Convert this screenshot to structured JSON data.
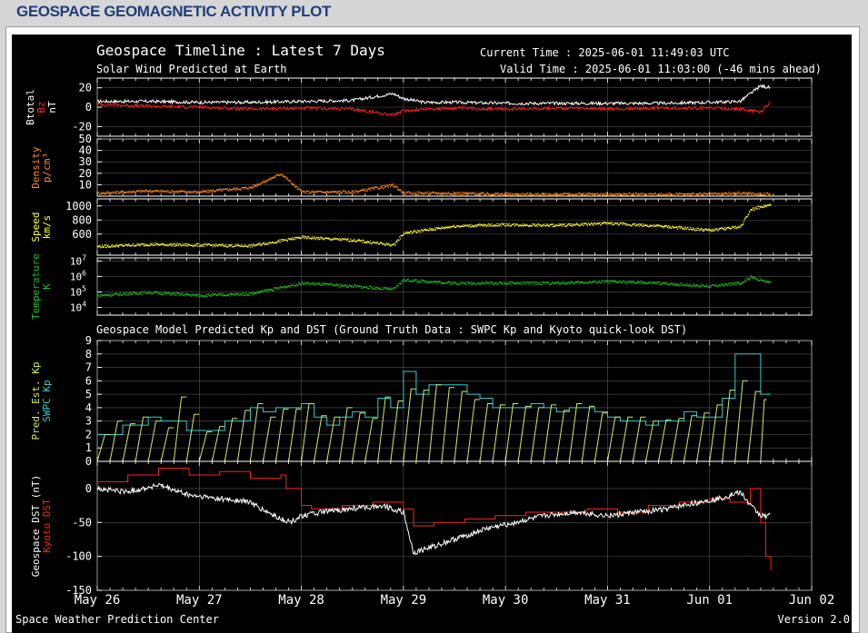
{
  "page": {
    "title": "GEOSPACE GEOMAGNETIC ACTIVITY PLOT"
  },
  "header": {
    "title": "Geospace Timeline : Latest 7 Days",
    "subtitle": "Solar Wind Predicted at Earth",
    "current_time": "Current Time : 2025-06-01 11:49:03 UTC",
    "valid_time": "Valid Time : 2025-06-01 11:03:00 (-46 mins ahead)",
    "model_title": "Geospace Model Predicted Kp and DST (Ground Truth Data : SWPC Kp and Kyoto quick-look DST)"
  },
  "footer": {
    "left": "Space Weather Prediction Center",
    "right": "Version 2.0"
  },
  "colors": {
    "white": "#ffffff",
    "red": "#ff2020",
    "orange": "#ff8c1a",
    "yellow": "#ffff33",
    "green": "#22bb22",
    "lightgreen": "#ccee66",
    "cyan": "#33cccc",
    "grid": "#555555",
    "axis": "#ffffff"
  },
  "chart_data": [
    {
      "type": "line",
      "title": "Geospace Timeline : Latest 7 Days",
      "ylabels": [
        "Btotal",
        "Bz",
        "nT"
      ],
      "yticks": [
        20,
        0,
        -20
      ],
      "ylim": [
        -30,
        30
      ],
      "series": [
        {
          "name": "Btotal",
          "color": "#ffffff",
          "x": [
            0,
            0.5,
            1,
            1.5,
            2,
            2.5,
            2.9,
            3,
            3.2,
            3.5,
            4,
            4.5,
            5,
            5.5,
            6,
            6.3,
            6.5,
            6.6
          ],
          "y": [
            6,
            6,
            5,
            5,
            6,
            7,
            14,
            9,
            5,
            5,
            4,
            4,
            4,
            4,
            5,
            6,
            22,
            20
          ]
        },
        {
          "name": "Bz",
          "color": "#ff2020",
          "x": [
            0,
            0.5,
            1,
            1.5,
            2,
            2.5,
            2.9,
            3,
            3.2,
            3.5,
            4,
            4.5,
            5,
            5.5,
            6,
            6.3,
            6.5,
            6.6
          ],
          "y": [
            3,
            1,
            0,
            -2,
            -1,
            -2,
            -8,
            -4,
            -2,
            -1,
            -2,
            -1,
            -2,
            -1,
            -1,
            -2,
            -5,
            5
          ]
        }
      ]
    },
    {
      "type": "scatter",
      "ylabels": [
        "Density",
        "p/cm³"
      ],
      "yticks": [
        50,
        40,
        30,
        20,
        10
      ],
      "ylim": [
        0,
        50
      ],
      "series": [
        {
          "name": "Density",
          "color": "#ff8c1a",
          "x": [
            0,
            0.5,
            1,
            1.5,
            1.8,
            2,
            2.5,
            2.9,
            3,
            3.5,
            4,
            4.5,
            5,
            5.5,
            6,
            6.3,
            6.6
          ],
          "y": [
            3,
            5,
            4,
            8,
            20,
            4,
            4,
            10,
            3,
            3,
            2,
            2,
            2,
            2,
            2,
            3,
            2
          ]
        }
      ]
    },
    {
      "type": "scatter",
      "ylabels": [
        "Speed",
        "km/s"
      ],
      "yticks": [
        1000,
        800,
        600
      ],
      "ylim": [
        300,
        1100
      ],
      "series": [
        {
          "name": "Speed",
          "color": "#ffff33",
          "x": [
            0,
            0.5,
            1,
            1.5,
            2,
            2.5,
            2.9,
            3,
            3.5,
            4,
            4.5,
            5,
            5.5,
            6,
            6.3,
            6.4,
            6.6
          ],
          "y": [
            430,
            460,
            450,
            440,
            560,
            520,
            450,
            620,
            720,
            740,
            730,
            760,
            720,
            660,
            710,
            960,
            1020
          ]
        }
      ]
    },
    {
      "type": "scatter",
      "ylabels": [
        "Temperature",
        "K"
      ],
      "yticks": [
        "10^7",
        "10^6",
        "10^5",
        "10^4"
      ],
      "ylim": [
        3.5,
        7.2
      ],
      "scale": "log",
      "series": [
        {
          "name": "Temperature",
          "color": "#22bb22",
          "x": [
            0,
            0.5,
            1,
            1.5,
            2,
            2.5,
            2.9,
            3,
            3.5,
            4,
            4.5,
            5,
            5.5,
            6,
            6.3,
            6.4,
            6.6
          ],
          "y": [
            4.8,
            5.0,
            4.8,
            4.9,
            5.6,
            5.4,
            5.2,
            5.8,
            5.6,
            5.6,
            5.6,
            5.7,
            5.6,
            5.4,
            5.6,
            6.0,
            5.6
          ]
        }
      ]
    },
    {
      "type": "line",
      "title": "Geospace Model Predicted Kp and DST (Ground Truth Data : SWPC Kp and Kyoto quick-look DST)",
      "ylabels": [
        "Pred. Est. Kp",
        "SWPC Kp"
      ],
      "yticks": [
        9,
        8,
        7,
        6,
        5,
        4,
        3,
        2,
        1,
        0
      ],
      "ylim": [
        0,
        9
      ],
      "series": [
        {
          "name": "SWPC Kp",
          "color": "#33cccc",
          "step": true,
          "x": [
            0,
            0.125,
            0.25,
            0.375,
            0.5,
            0.625,
            0.75,
            0.875,
            1,
            1.125,
            1.25,
            1.375,
            1.5,
            1.625,
            1.75,
            1.875,
            2,
            2.125,
            2.25,
            2.375,
            2.5,
            2.625,
            2.75,
            2.875,
            3,
            3.125,
            3.25,
            3.375,
            3.5,
            3.625,
            3.75,
            3.875,
            4,
            4.125,
            4.25,
            4.375,
            4.5,
            4.625,
            4.75,
            4.875,
            5,
            5.125,
            5.25,
            5.375,
            5.5,
            5.625,
            5.75,
            5.875,
            6,
            6.125,
            6.25,
            6.375,
            6.5,
            6.6
          ],
          "y": [
            2,
            2,
            2.7,
            2.7,
            3.3,
            3,
            3,
            2.3,
            2.3,
            2.3,
            3,
            3,
            4,
            3.7,
            4,
            4,
            4.3,
            3.3,
            2.7,
            3.3,
            3.7,
            3.3,
            4.7,
            4,
            6.7,
            5,
            5.7,
            5.7,
            5.7,
            5,
            4.7,
            4,
            4,
            4,
            4.3,
            4,
            3.7,
            4,
            4,
            3.7,
            3.3,
            3,
            3,
            2.7,
            3,
            3,
            3.7,
            3.3,
            3.3,
            4.7,
            8,
            8,
            5,
            5
          ]
        },
        {
          "name": "Pred. Est. Kp",
          "color": "#ccee66",
          "sawtooth": true,
          "x": [
            0,
            0.125,
            0.25,
            0.375,
            0.5,
            0.625,
            0.75,
            0.875,
            1,
            1.125,
            1.25,
            1.375,
            1.5,
            1.625,
            1.75,
            1.875,
            2,
            2.125,
            2.25,
            2.375,
            2.5,
            2.625,
            2.75,
            2.875,
            3,
            3.125,
            3.25,
            3.375,
            3.5,
            3.625,
            3.75,
            3.875,
            4,
            4.125,
            4.25,
            4.375,
            4.5,
            4.625,
            4.75,
            4.875,
            5,
            5.125,
            5.25,
            5.375,
            5.5,
            5.625,
            5.75,
            5.875,
            6,
            6.125,
            6.25,
            6.375,
            6.5
          ],
          "y": [
            2,
            3,
            2.8,
            3.3,
            3,
            2.5,
            4.8,
            3.5,
            2.2,
            2.6,
            3.2,
            3.8,
            4.3,
            3.3,
            3.9,
            3.9,
            4.3,
            3.4,
            3.3,
            4,
            3.6,
            3.2,
            4.8,
            4.5,
            5.4,
            5.3,
            5.7,
            5.5,
            5.2,
            4.6,
            4.3,
            4.2,
            4.3,
            4.1,
            4,
            4.2,
            3.8,
            4.3,
            4.1,
            3.6,
            3.3,
            3.3,
            3.3,
            3,
            3.1,
            3.2,
            3.4,
            3.6,
            4.2,
            5.3,
            6,
            5.2,
            4.6
          ]
        }
      ]
    },
    {
      "type": "line",
      "ylabels": [
        "Geospace DST (nT)",
        "Kyoto DST"
      ],
      "yticks": [
        0,
        -50,
        -100,
        -150
      ],
      "ylim": [
        -150,
        40
      ],
      "series": [
        {
          "name": "Kyoto DST",
          "color": "#ff2020",
          "step": true,
          "x": [
            0,
            0.3,
            0.6,
            0.9,
            1.2,
            1.5,
            1.8,
            1.85,
            2,
            2.1,
            2.4,
            2.7,
            3,
            3.1,
            3.3,
            3.6,
            3.9,
            4.2,
            4.5,
            4.8,
            5.1,
            5.4,
            5.7,
            6,
            6.2,
            6.4,
            6.5,
            6.55,
            6.6
          ],
          "y": [
            10,
            20,
            30,
            20,
            25,
            15,
            20,
            0,
            -25,
            -30,
            -25,
            -20,
            -30,
            -55,
            -50,
            -45,
            -40,
            -35,
            -35,
            -30,
            -35,
            -25,
            -20,
            -15,
            -20,
            0,
            -50,
            -100,
            -120
          ]
        },
        {
          "name": "Geospace DST",
          "color": "#ffffff",
          "x": [
            0,
            0.3,
            0.6,
            0.9,
            1.2,
            1.5,
            1.6,
            1.8,
            1.9,
            2,
            2.2,
            2.5,
            2.8,
            3,
            3.1,
            3.3,
            3.5,
            3.8,
            4.1,
            4.4,
            4.7,
            5,
            5.3,
            5.6,
            5.9,
            6.1,
            6.3,
            6.4,
            6.5,
            6.6
          ],
          "y": [
            0,
            -5,
            5,
            -10,
            -15,
            -20,
            -30,
            -45,
            -50,
            -40,
            -35,
            -30,
            -25,
            -35,
            -95,
            -85,
            -75,
            -60,
            -50,
            -40,
            -35,
            -40,
            -35,
            -30,
            -20,
            -15,
            -5,
            -25,
            -40,
            -40
          ]
        }
      ]
    }
  ],
  "xaxis": {
    "ticks": [
      "May 26",
      "May 27",
      "May 28",
      "May 29",
      "May 30",
      "May 31",
      "Jun 01",
      "Jun 02"
    ],
    "xlim": [
      0,
      7
    ]
  }
}
